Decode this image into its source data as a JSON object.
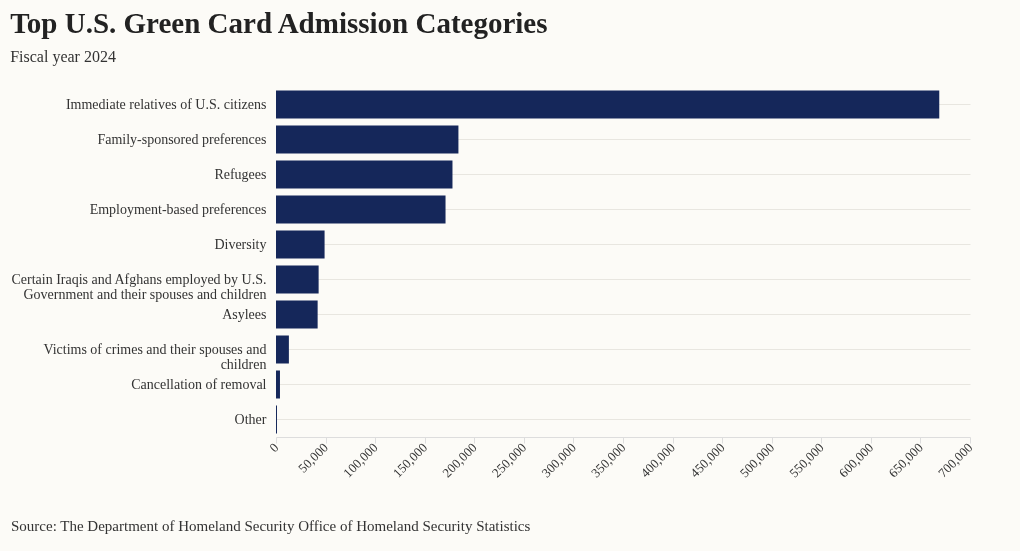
{
  "chart_data": {
    "type": "bar",
    "orientation": "horizontal",
    "title": "Top U.S. Green Card Admission Categories",
    "subtitle": "Fiscal year 2024",
    "categories": [
      "Immediate relatives of U.S. citizens",
      "Family-sponsored preferences",
      "Refugees",
      "Employment-based preferences",
      "Diversity",
      "Certain Iraqis and Afghans employed by U.S. Government and their spouses and children",
      "Asylees",
      "Victims of crimes and their spouses and children",
      "Cancellation of removal",
      "Other"
    ],
    "values": [
      669000,
      184000,
      178000,
      171000,
      49000,
      43000,
      42000,
      13000,
      4000,
      1000
    ],
    "color": "#15275a",
    "xlim": [
      0,
      700000
    ],
    "xticks": [
      0,
      {
        "value": 50000,
        "label": "50,000"
      },
      {
        "value": 100000,
        "label": "100,000"
      },
      {
        "value": 150000,
        "label": "150,000"
      },
      {
        "value": 200000,
        "label": "200,000"
      },
      {
        "value": 250000,
        "label": "250,000"
      },
      {
        "value": 300000,
        "label": "300,000"
      },
      {
        "value": 350000,
        "label": "350,000"
      },
      {
        "value": 400000,
        "label": "400,000"
      },
      {
        "value": 450000,
        "label": "450,000"
      },
      {
        "value": 500000,
        "label": "500,000"
      },
      {
        "value": 550000,
        "label": "550,000"
      },
      {
        "value": 600000,
        "label": "600,000"
      },
      {
        "value": 650000,
        "label": "650,000"
      },
      {
        "value": 700000,
        "label": "700,000"
      }
    ],
    "grid": "y",
    "annotations": [
      "Source: The Department of Homeland Security Office of Homeland Security Statistics"
    ]
  }
}
